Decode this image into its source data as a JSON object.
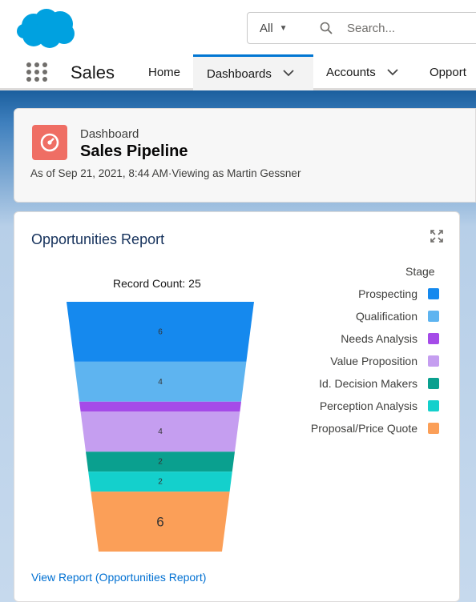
{
  "header": {
    "search_scope": "All",
    "search_placeholder": "Search..."
  },
  "nav": {
    "app_name": "Sales",
    "items": [
      {
        "label": "Home",
        "has_menu": false,
        "active": false
      },
      {
        "label": "Dashboards",
        "has_menu": true,
        "active": true
      },
      {
        "label": "Accounts",
        "has_menu": true,
        "active": false
      },
      {
        "label": "Opport",
        "has_menu": false,
        "active": false
      }
    ]
  },
  "dashboard": {
    "type_label": "Dashboard",
    "title": "Sales Pipeline",
    "meta": "As of Sep 21, 2021, 8:44 AM·Viewing as Martin Gessner"
  },
  "report": {
    "title": "Opportunities Report",
    "view_link": "View Report (Opportunities Report)"
  },
  "chart_data": {
    "type": "funnel",
    "title": "Record Count: 25",
    "legend_title": "Stage",
    "legend_position": "right",
    "categories": [
      "Prospecting",
      "Qualification",
      "Needs Analysis",
      "Value Proposition",
      "Id. Decision Makers",
      "Perception Analysis",
      "Proposal/Price Quote"
    ],
    "values": [
      6,
      4,
      1,
      4,
      2,
      2,
      6
    ],
    "labels": [
      "6",
      "4",
      "",
      "4",
      "2",
      "2",
      "6"
    ],
    "colors": [
      "#1589ee",
      "#5eb4f0",
      "#a54be8",
      "#c59ef0",
      "#0aa08f",
      "#14d0cc",
      "#fb9f58"
    ]
  }
}
